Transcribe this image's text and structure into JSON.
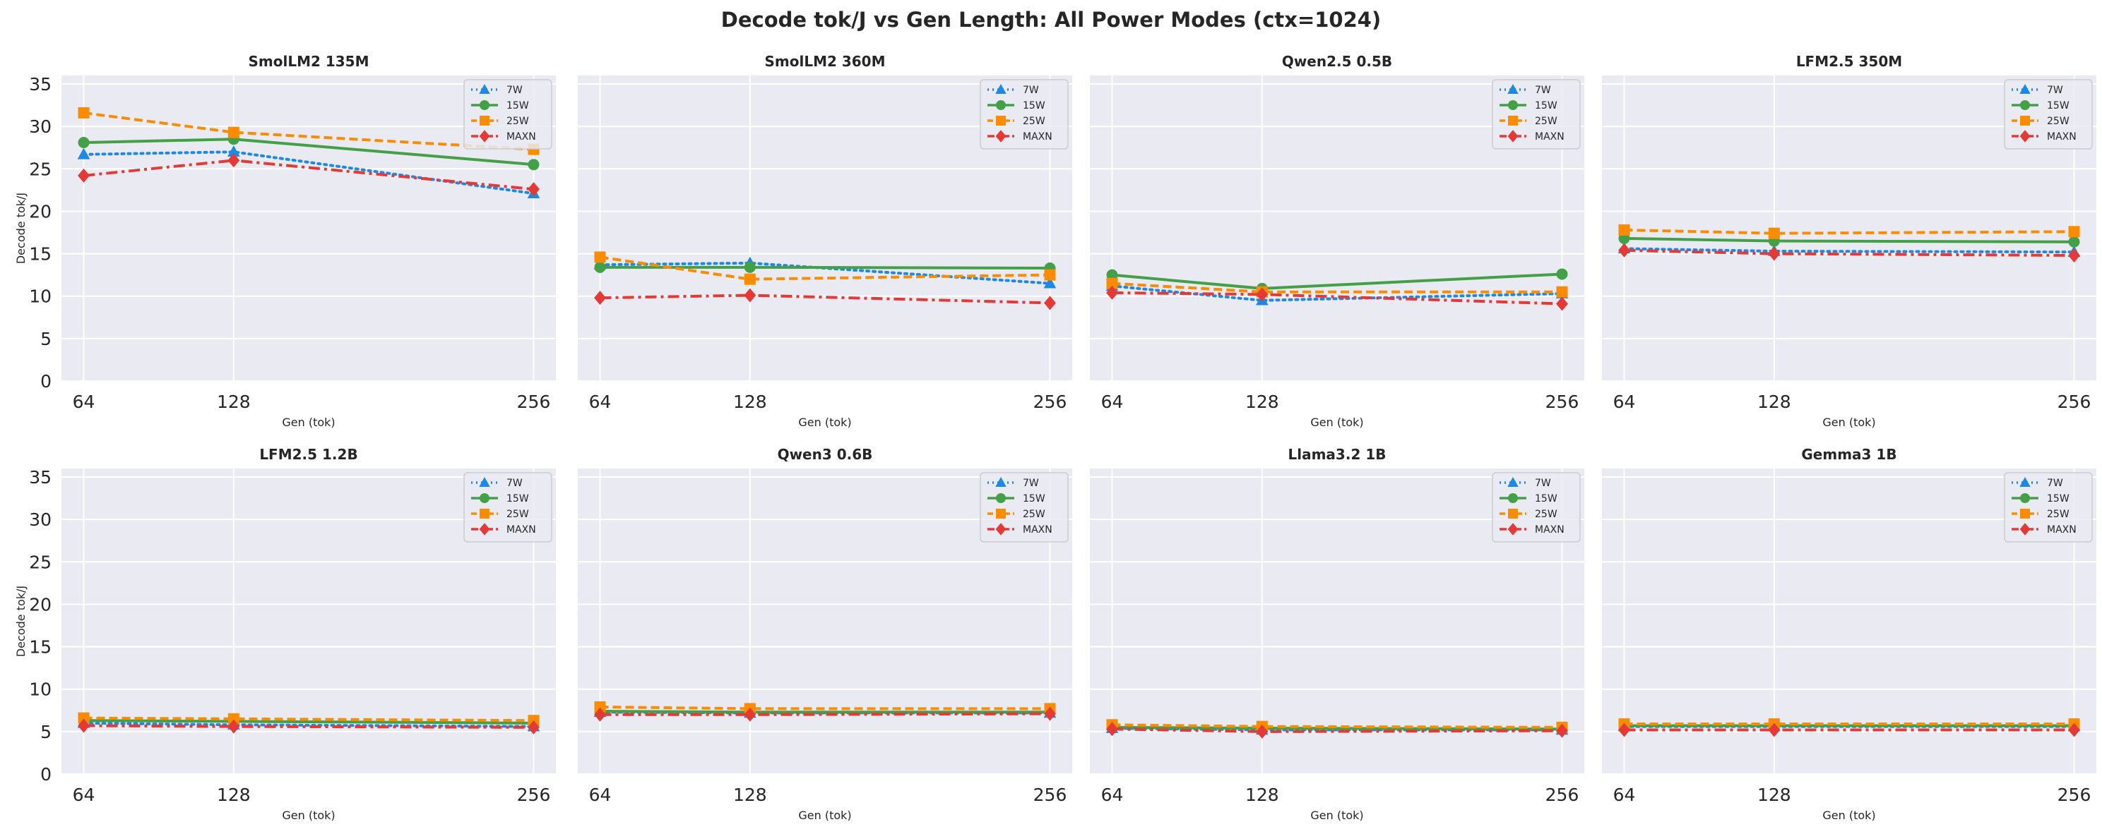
{
  "chart_data": {
    "type": "line",
    "title": "Decode tok/J vs Gen Length: All Power Modes (ctx=1024)",
    "xlabel": "Gen (tok)",
    "ylabel": "Decode tok/J",
    "x": [
      64,
      128,
      256
    ],
    "ylim": [
      0,
      36
    ],
    "yticks": [
      0,
      5,
      10,
      15,
      20,
      25,
      30,
      35
    ],
    "grid": true,
    "legend_position": "top-right",
    "series_styles": [
      {
        "name": "7W",
        "color": "#1e88e5",
        "marker": "triangle",
        "dash": "dotted"
      },
      {
        "name": "15W",
        "color": "#43a047",
        "marker": "circle",
        "dash": "solid"
      },
      {
        "name": "25W",
        "color": "#fb8c00",
        "marker": "square",
        "dash": "dashed"
      },
      {
        "name": "MAXN",
        "color": "#e53935",
        "marker": "diamond",
        "dash": "dashdot"
      }
    ],
    "panels": [
      {
        "title": "SmolLM2 135M",
        "series": [
          {
            "name": "7W",
            "values": [
              26.7,
              27.0,
              22.1
            ]
          },
          {
            "name": "15W",
            "values": [
              28.1,
              28.5,
              25.5
            ]
          },
          {
            "name": "25W",
            "values": [
              31.6,
              29.3,
              27.3
            ]
          },
          {
            "name": "MAXN",
            "values": [
              24.2,
              26.0,
              22.6
            ]
          }
        ]
      },
      {
        "title": "SmolLM2 360M",
        "series": [
          {
            "name": "7W",
            "values": [
              13.7,
              13.9,
              11.5
            ]
          },
          {
            "name": "15W",
            "values": [
              13.4,
              13.4,
              13.3
            ]
          },
          {
            "name": "25W",
            "values": [
              14.6,
              12.0,
              12.5
            ]
          },
          {
            "name": "MAXN",
            "values": [
              9.8,
              10.1,
              9.2
            ]
          }
        ]
      },
      {
        "title": "Qwen2.5 0.5B",
        "series": [
          {
            "name": "7W",
            "values": [
              11.2,
              9.5,
              10.3
            ]
          },
          {
            "name": "15W",
            "values": [
              12.5,
              10.9,
              12.6
            ]
          },
          {
            "name": "25W",
            "values": [
              11.5,
              10.5,
              10.5
            ]
          },
          {
            "name": "MAXN",
            "values": [
              10.4,
              10.2,
              9.1
            ]
          }
        ]
      },
      {
        "title": "LFM2.5 350M",
        "series": [
          {
            "name": "7W",
            "values": [
              15.6,
              15.3,
              15.2
            ]
          },
          {
            "name": "15W",
            "values": [
              16.8,
              16.5,
              16.4
            ]
          },
          {
            "name": "25W",
            "values": [
              17.8,
              17.4,
              17.6
            ]
          },
          {
            "name": "MAXN",
            "values": [
              15.4,
              15.0,
              14.8
            ]
          }
        ]
      },
      {
        "title": "LFM2.5 1.2B",
        "series": [
          {
            "name": "7W",
            "values": [
              6.0,
              5.8,
              5.6
            ]
          },
          {
            "name": "15W",
            "values": [
              6.3,
              6.2,
              6.0
            ]
          },
          {
            "name": "25W",
            "values": [
              6.6,
              6.5,
              6.3
            ]
          },
          {
            "name": "MAXN",
            "values": [
              5.7,
              5.6,
              5.5
            ]
          }
        ]
      },
      {
        "title": "Qwen3 0.6B",
        "series": [
          {
            "name": "7W",
            "values": [
              7.3,
              7.2,
              7.2
            ]
          },
          {
            "name": "15W",
            "values": [
              7.4,
              7.3,
              7.3
            ]
          },
          {
            "name": "25W",
            "values": [
              7.9,
              7.7,
              7.7
            ]
          },
          {
            "name": "MAXN",
            "values": [
              7.0,
              7.0,
              7.1
            ]
          }
        ]
      },
      {
        "title": "Llama3.2 1B",
        "series": [
          {
            "name": "7W",
            "values": [
              5.4,
              5.2,
              5.2
            ]
          },
          {
            "name": "15W",
            "values": [
              5.5,
              5.4,
              5.3
            ]
          },
          {
            "name": "25W",
            "values": [
              5.8,
              5.6,
              5.5
            ]
          },
          {
            "name": "MAXN",
            "values": [
              5.3,
              5.0,
              5.1
            ]
          }
        ]
      },
      {
        "title": "Gemma3 1B",
        "series": [
          {
            "name": "7W",
            "values": [
              5.6,
              5.6,
              5.6
            ]
          },
          {
            "name": "15W",
            "values": [
              5.7,
              5.7,
              5.7
            ]
          },
          {
            "name": "25W",
            "values": [
              5.9,
              5.9,
              5.9
            ]
          },
          {
            "name": "MAXN",
            "values": [
              5.2,
              5.2,
              5.2
            ]
          }
        ]
      }
    ]
  }
}
